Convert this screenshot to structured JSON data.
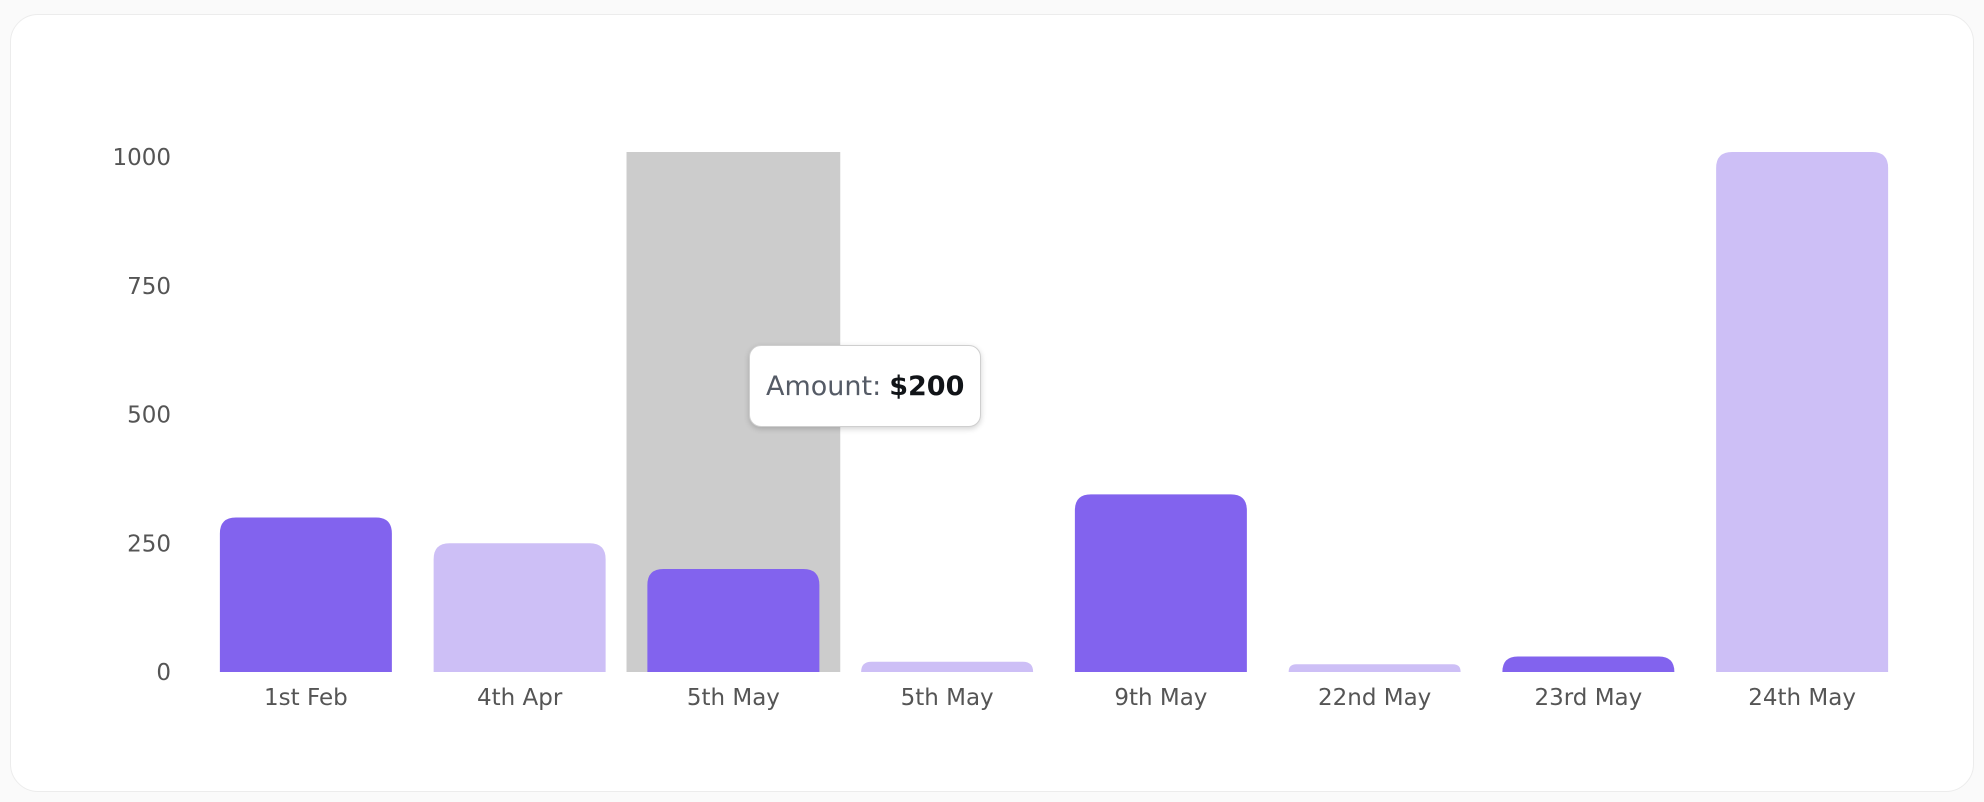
{
  "chart_data": {
    "type": "bar",
    "categories": [
      "1st Feb",
      "4th Apr",
      "5th May",
      "5th May",
      "9th May",
      "22nd May",
      "23rd May",
      "24th May"
    ],
    "values": [
      300,
      250,
      200,
      20,
      345,
      15,
      30,
      1010
    ],
    "yticks": [
      0,
      250,
      500,
      750,
      1000
    ],
    "ylim": [
      0,
      1010
    ],
    "title": "",
    "xlabel": "",
    "ylabel": "",
    "highlighted_index": 2,
    "bar_colors": [
      "#8263ee",
      "#cdbff6",
      "#8263ee",
      "#cdbff6",
      "#8263ee",
      "#cdbff6",
      "#8263ee",
      "#cdbff6"
    ],
    "highlight_color": "#cccccc",
    "grid": false
  },
  "tooltip": {
    "label": "Amount:",
    "value": "$200"
  }
}
